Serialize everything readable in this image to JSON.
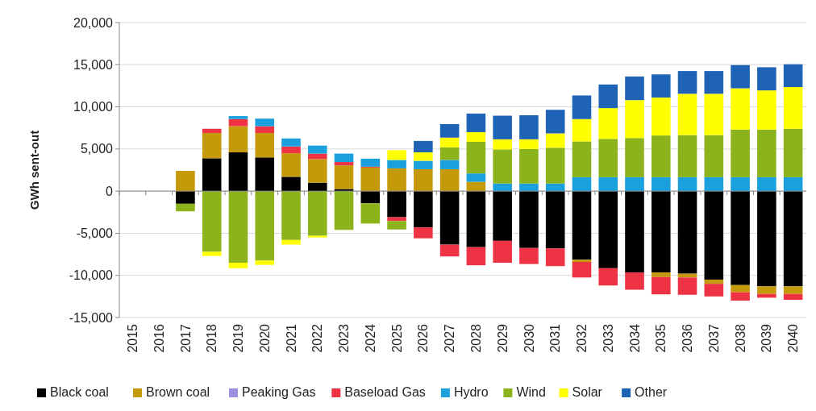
{
  "chart_data": {
    "type": "bar",
    "stacked": true,
    "ylabel": "GWh sent-out",
    "categories": [
      "2015",
      "2016",
      "2017",
      "2018",
      "2019",
      "2020",
      "2021",
      "2022",
      "2023",
      "2024",
      "2025",
      "2026",
      "2027",
      "2028",
      "2029",
      "2030",
      "2031",
      "2032",
      "2033",
      "2034",
      "2035",
      "2036",
      "2037",
      "2038",
      "2039",
      "2040"
    ],
    "series": [
      {
        "name": "Black coal",
        "color": "#000000",
        "values": [
          0,
          0,
          -1500,
          3900,
          4600,
          4000,
          1700,
          1000,
          250,
          -1450,
          -3100,
          -4300,
          -6350,
          -6650,
          -5900,
          -6750,
          -6800,
          -8150,
          -9150,
          -9650,
          -9650,
          -9800,
          -10500,
          -11150,
          -11300,
          -11300
        ]
      },
      {
        "name": "Brown coal",
        "color": "#c59a0a",
        "values": [
          0,
          0,
          2400,
          3000,
          3100,
          2900,
          2800,
          2800,
          2800,
          2800,
          2700,
          2600,
          2600,
          1100,
          0,
          0,
          0,
          -250,
          0,
          0,
          -550,
          -450,
          -500,
          -850,
          -900,
          -900
        ]
      },
      {
        "name": "Peaking Gas",
        "color": "#9c8fe0",
        "values": [
          0,
          0,
          0,
          0,
          0,
          0,
          0,
          0,
          0,
          0,
          0,
          0,
          0,
          0,
          0,
          0,
          0,
          0,
          0,
          0,
          0,
          0,
          0,
          0,
          0,
          0
        ]
      },
      {
        "name": "Baseload Gas",
        "color": "#ee3344",
        "values": [
          0,
          0,
          0,
          500,
          850,
          800,
          800,
          650,
          400,
          100,
          -450,
          -1300,
          -1400,
          -2150,
          -2600,
          -1900,
          -2100,
          -1850,
          -2050,
          -2050,
          -2050,
          -2050,
          -1500,
          -1000,
          -450,
          -700
        ]
      },
      {
        "name": "Hydro",
        "color": "#1aa0dc",
        "values": [
          0,
          0,
          0,
          0,
          350,
          900,
          950,
          950,
          1000,
          950,
          1000,
          1000,
          1100,
          1000,
          900,
          900,
          900,
          1650,
          1650,
          1650,
          1650,
          1650,
          1650,
          1650,
          1650,
          1650
        ]
      },
      {
        "name": "Wind",
        "color": "#8db31c",
        "values": [
          0,
          0,
          -900,
          -7200,
          -8500,
          -8250,
          -5800,
          -5300,
          -4600,
          -2400,
          -1000,
          0,
          1500,
          3750,
          4050,
          4100,
          4250,
          4250,
          4550,
          4650,
          4950,
          5000,
          5000,
          5650,
          5650,
          5750
        ]
      },
      {
        "name": "Solar",
        "color": "#ffff00",
        "values": [
          0,
          0,
          0,
          -500,
          -650,
          -500,
          -550,
          -200,
          0,
          0,
          1150,
          1000,
          1150,
          1150,
          1200,
          1150,
          1700,
          2650,
          3650,
          4500,
          4500,
          4900,
          4900,
          4900,
          4650,
          4950
        ]
      },
      {
        "name": "Other",
        "color": "#1f63b6",
        "values": [
          0,
          0,
          0,
          0,
          0,
          0,
          0,
          0,
          0,
          0,
          0,
          1350,
          1600,
          2200,
          2800,
          2850,
          2800,
          2800,
          2800,
          2800,
          2750,
          2700,
          2700,
          2750,
          2750,
          2700
        ]
      }
    ],
    "ylim": [
      -15000,
      20000
    ],
    "yticks": [
      {
        "value": -15000,
        "label": "-15,000"
      },
      {
        "value": -10000,
        "label": "-10,000"
      },
      {
        "value": -5000,
        "label": "-5,000"
      },
      {
        "value": 0,
        "label": "0"
      },
      {
        "value": 5000,
        "label": "5,000"
      },
      {
        "value": 10000,
        "label": "10,000"
      },
      {
        "value": 15000,
        "label": "15,000"
      },
      {
        "value": 20000,
        "label": "20,000"
      }
    ],
    "grid": "y",
    "legend": "bottom"
  }
}
